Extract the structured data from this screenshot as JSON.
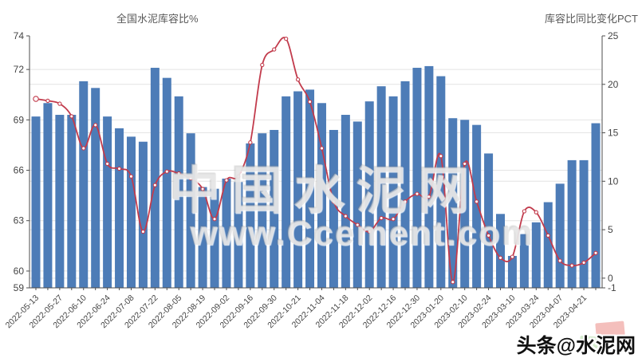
{
  "chart_data": {
    "type": "bar",
    "categories": [
      "2022-05-13",
      "2022-05-20",
      "2022-05-27",
      "2022-06-03",
      "2022-06-10",
      "2022-06-17",
      "2022-06-24",
      "2022-07-01",
      "2022-07-08",
      "2022-07-15",
      "2022-07-22",
      "2022-07-29",
      "2022-08-05",
      "2022-08-12",
      "2022-08-19",
      "2022-08-26",
      "2022-09-02",
      "2022-09-09",
      "2022-09-16",
      "2022-09-23",
      "2022-09-30",
      "2022-10-14",
      "2022-10-21",
      "2022-10-28",
      "2022-11-04",
      "2022-11-11",
      "2022-11-18",
      "2022-11-25",
      "2022-12-02",
      "2022-12-09",
      "2022-12-16",
      "2022-12-23",
      "2022-12-30",
      "2023-01-13",
      "2023-01-20",
      "2023-02-03",
      "2023-02-10",
      "2023-02-17",
      "2023-02-24",
      "2023-03-03",
      "2023-03-10",
      "2023-03-17",
      "2023-03-24",
      "2023-03-31",
      "2023-04-07",
      "2023-04-14",
      "2023-04-21",
      "2023-04-28"
    ],
    "series": [
      {
        "name": "全国水泥库容比%",
        "type": "bar",
        "axis": "left",
        "color": "#4d7cb7",
        "values": [
          69.2,
          70.0,
          69.3,
          69.3,
          71.3,
          70.9,
          69.2,
          68.5,
          68.0,
          67.7,
          72.1,
          71.5,
          70.4,
          68.2,
          65.0,
          64.9,
          65.5,
          65.3,
          67.6,
          68.2,
          68.4,
          70.4,
          70.7,
          70.8,
          70.0,
          68.4,
          69.3,
          68.9,
          70.1,
          71.0,
          70.4,
          71.3,
          72.1,
          72.2,
          71.6,
          69.1,
          69.0,
          68.7,
          67.0,
          63.4,
          60.9,
          62.2,
          62.9,
          64.1,
          65.2,
          66.6,
          66.6,
          68.8
        ]
      },
      {
        "name": "库容比同比变化PCT",
        "type": "line",
        "axis": "right",
        "color": "#c23b4c",
        "values": [
          18.5,
          18.3,
          18.0,
          16.7,
          13.4,
          15.8,
          11.8,
          11.3,
          10.5,
          4.8,
          9.6,
          11.0,
          10.8,
          10.3,
          9.2,
          6.1,
          10.1,
          10.5,
          14.0,
          22.0,
          23.6,
          24.7,
          20.5,
          18.2,
          13.4,
          7.9,
          6.4,
          5.5,
          4.8,
          6.2,
          6.1,
          7.9,
          8.7,
          8.4,
          12.6,
          -0.4,
          11.8,
          7.9,
          4.4,
          2.1,
          2.2,
          6.9,
          6.8,
          4.4,
          1.8,
          1.3,
          1.6,
          2.6
        ]
      }
    ],
    "left_axis": {
      "title": "全国水泥库容比%",
      "min": 59,
      "max": 74,
      "ticks": [
        59,
        60,
        63,
        66,
        69,
        72,
        74
      ]
    },
    "right_axis": {
      "title": "库容比同比变化PCT",
      "min": -1,
      "max": 25,
      "ticks": [
        -1,
        0,
        5,
        10,
        15,
        20,
        25
      ]
    },
    "x_label_every": 2,
    "grid": true,
    "legend": "none"
  },
  "watermark": {
    "line1": "中国水泥网",
    "line2": "www.Ccement.com"
  },
  "footer_logo": {
    "text": "头条@水泥网",
    "tile_colors": [
      "#f2b4b0",
      "#cde7c4",
      "#bcd7f1"
    ]
  },
  "style": {
    "axis_color": "#4d4d4d",
    "grid_color": "#e4e4e4",
    "tick_text_color": "#444444",
    "title_color": "#595959",
    "background": "#ffffff"
  }
}
